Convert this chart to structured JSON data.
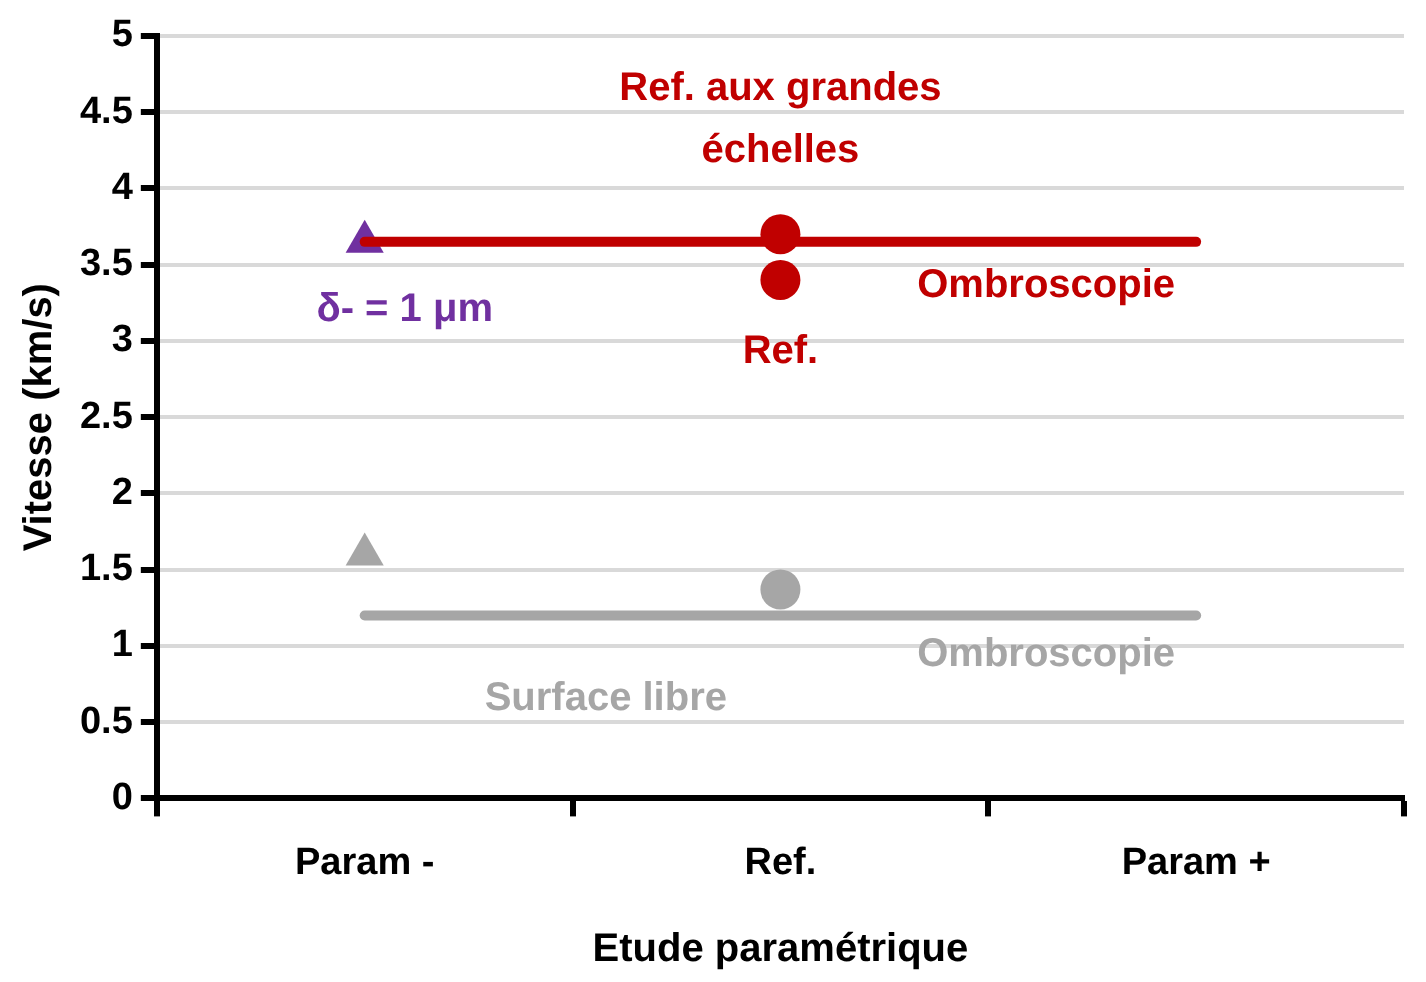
{
  "chart_data": {
    "type": "line",
    "categories": [
      "Param -",
      "Ref.",
      "Param +"
    ],
    "xlabel": "Etude paramétrique",
    "ylabel": "Vitesse (km/s)",
    "ylim": [
      0,
      5
    ],
    "yticks": [
      0,
      0.5,
      1,
      1.5,
      2,
      2.5,
      3,
      3.5,
      4,
      4.5,
      5
    ],
    "grid": "y",
    "legend": false,
    "annotations": [
      "Ref. aux grandes échelles",
      "Surface libre"
    ],
    "series": [
      {
        "name": "Ombroscopie",
        "color": "#c00000",
        "marker": "none",
        "values": [
          3.65,
          3.65,
          3.65
        ]
      },
      {
        "name": "Ombroscopie",
        "color": "#a6a6a6",
        "marker": "none",
        "values": [
          1.2,
          1.2,
          1.2
        ]
      },
      {
        "name": "δ- = 1 μm",
        "type": "scatter",
        "color": "#7030a0",
        "marker": "triangle",
        "values": [
          3.65,
          null,
          null
        ]
      },
      {
        "name": "Ref.",
        "type": "scatter",
        "color": "#c00000",
        "marker": "circle",
        "values": [
          null,
          3.4,
          null
        ]
      },
      {
        "type": "scatter",
        "color": "#c00000",
        "marker": "circle",
        "values": [
          null,
          3.7,
          null
        ]
      },
      {
        "type": "scatter",
        "color": "#a6a6a6",
        "marker": "triangle",
        "values": [
          1.6,
          null,
          null
        ]
      },
      {
        "type": "scatter",
        "color": "#a6a6a6",
        "marker": "circle",
        "values": [
          null,
          1.37,
          null
        ]
      }
    ]
  }
}
